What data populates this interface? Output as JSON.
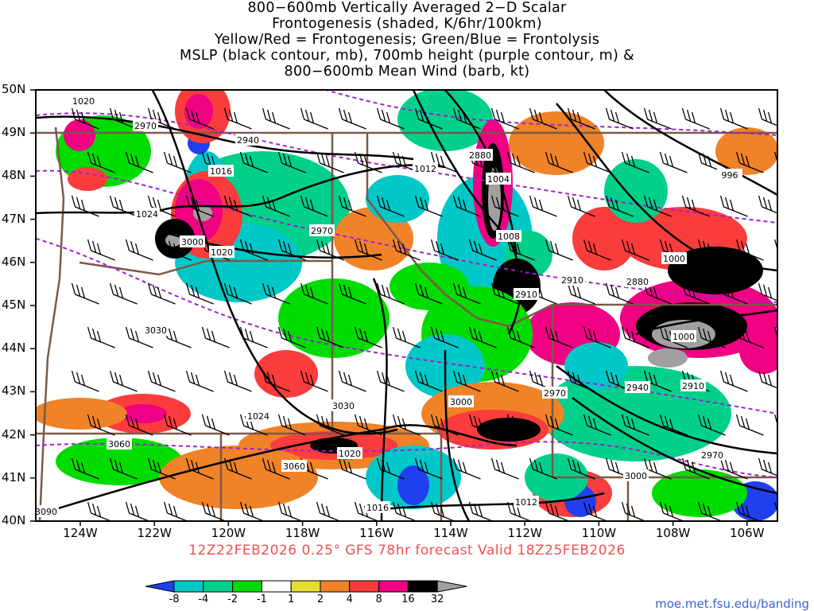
{
  "title_lines": [
    "800−600mb Vertically Averaged 2−D Scalar",
    "Frontogenesis (shaded, K/6hr/100km)",
    "Yellow/Red = Frontogenesis;  Green/Blue = Frontolysis",
    "MSLP (black contour, mb), 700mb height (purple contour, m) &",
    "800−600mb Mean Wind (barb, kt)"
  ],
  "lat_labels": [
    "50N",
    "49N",
    "48N",
    "47N",
    "46N",
    "45N",
    "44N",
    "43N",
    "42N",
    "41N",
    "40N"
  ],
  "lon_labels": [
    "124W",
    "122W",
    "120W",
    "118W",
    "116W",
    "114W",
    "112W",
    "110W",
    "108W",
    "106W"
  ],
  "valid_text": "12Z22FEB2026 0.25° GFS 78hr forecast Valid 18Z25FEB2026",
  "colorbar": {
    "labels": [
      "-8",
      "-4",
      "-2",
      "-1",
      "1",
      "2",
      "4",
      "8",
      "16",
      "32"
    ],
    "colors": [
      "#2040f0",
      "#00c8c8",
      "#00d08c",
      "#00dc00",
      "#ffffff",
      "#e6dc32",
      "#f08228",
      "#fa3c3c",
      "#f00082",
      "#000000",
      "#a0a0a0"
    ]
  },
  "contour_labels": [
    "1020",
    "2970",
    "2940",
    "1016",
    "1024",
    "3000",
    "1020",
    "2970",
    "1012",
    "2880",
    "1004",
    "1008",
    "996",
    "1000",
    "2880",
    "2910",
    "2910",
    "1000",
    "3030",
    "1024",
    "3030",
    "3000",
    "2970",
    "2940",
    "2910",
    "3060",
    "1020",
    "3060",
    "3090",
    "1016",
    "1012",
    "3000",
    "2970"
  ],
  "credit": "moe.met.fsu.edu/banding"
}
